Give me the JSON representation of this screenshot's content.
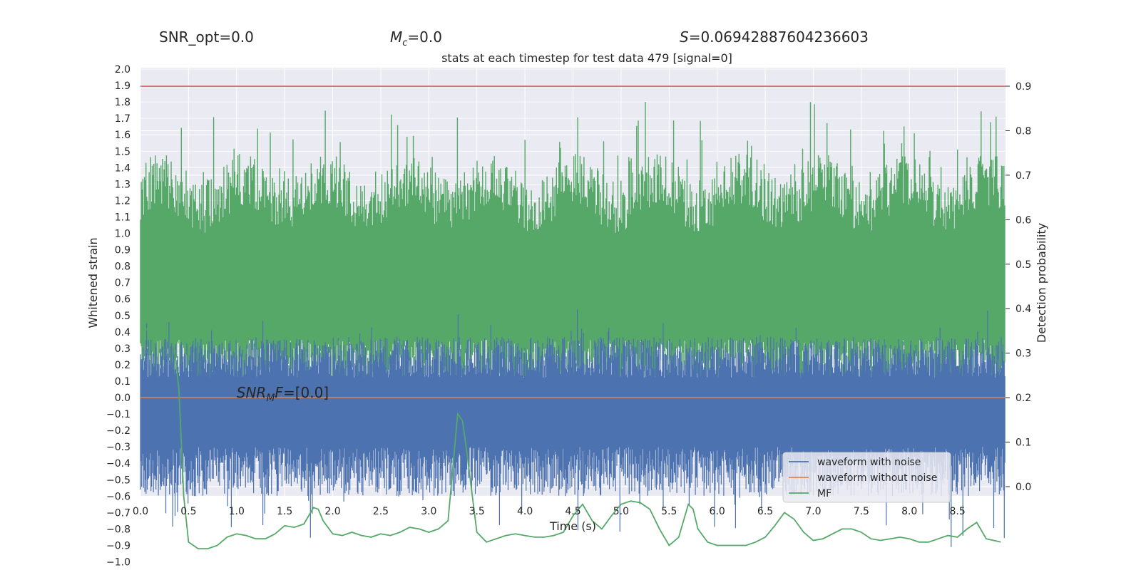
{
  "header": {
    "snr_opt": "SNR_opt=0.0",
    "mc_symbol": "M",
    "mc_sub": "c",
    "mc_value": "=0.0",
    "s_symbol": "S",
    "s_value": "=0.06942887604236603",
    "title": "stats at each timestep for test data 479 [signal=0]"
  },
  "annotation": {
    "snr_base": "SNR",
    "snr_sub": "M",
    "snr_tail": "F",
    "snr_value": "=[0.0]"
  },
  "chart_data": {
    "type": "line",
    "title": "stats at each timestep for test data 479 [signal=0]",
    "xlabel": "Time (s)",
    "ylabel_left": "Whitened strain",
    "ylabel_right": "Detection probability",
    "xlim": [
      0.0,
      9.0
    ],
    "ylim_left": [
      -1.1,
      2.0
    ],
    "ylim_right": [
      -0.02,
      0.92
    ],
    "x_ticks": [
      "0.0",
      "0.5",
      "1.0",
      "1.5",
      "2.0",
      "2.5",
      "3.0",
      "3.5",
      "4.0",
      "4.5",
      "5.0",
      "5.5",
      "6.0",
      "6.5",
      "7.0",
      "7.5",
      "8.0",
      "8.5"
    ],
    "y_left_ticks": [
      "2.0",
      "1.9",
      "1.8",
      "1.7",
      "1.6",
      "1.5",
      "1.4",
      "1.3",
      "1.2",
      "1.1",
      "1.0",
      "0.9",
      "0.8",
      "0.7",
      "0.6",
      "0.5",
      "0.4",
      "0.3",
      "0.2",
      "0.1",
      "0.0",
      "−0.1",
      "−0.2",
      "−0.3",
      "−0.4",
      "−0.5",
      "−0.6",
      "−0.7",
      "−0.8",
      "−0.9",
      "−1.0"
    ],
    "y_right_ticks": [
      "0.9",
      "0.8",
      "0.7",
      "0.6",
      "0.5",
      "0.4",
      "0.3",
      "0.2",
      "0.1",
      "0.0"
    ],
    "threshold": 0.9,
    "legend_position": "lower right",
    "grid": true,
    "series": [
      {
        "name": "waveform with noise",
        "color": "#4c72b0",
        "axis": "left",
        "description_range": [
          -0.9,
          0.5
        ]
      },
      {
        "name": "waveform without noise",
        "color": "#dd8452",
        "axis": "left",
        "value": 0.0
      },
      {
        "name": "MF",
        "color": "#55a868",
        "axis": "left",
        "x": [
          0.0,
          0.1,
          0.2,
          0.3,
          0.35,
          0.4,
          0.45,
          0.5,
          0.6,
          0.7,
          0.8,
          0.9,
          1.0,
          1.1,
          1.2,
          1.3,
          1.4,
          1.5,
          1.6,
          1.7,
          1.8,
          1.85,
          1.9,
          2.0,
          2.1,
          2.2,
          2.3,
          2.4,
          2.5,
          2.6,
          2.7,
          2.8,
          2.9,
          3.0,
          3.1,
          3.2,
          3.3,
          3.35,
          3.4,
          3.5,
          3.6,
          3.7,
          3.8,
          3.9,
          4.0,
          4.1,
          4.2,
          4.3,
          4.4,
          4.5,
          4.6,
          4.7,
          4.8,
          4.9,
          5.0,
          5.1,
          5.2,
          5.3,
          5.4,
          5.5,
          5.6,
          5.7,
          5.75,
          5.8,
          5.9,
          6.0,
          6.1,
          6.2,
          6.3,
          6.4,
          6.5,
          6.6,
          6.7,
          6.8,
          6.9,
          7.0,
          7.1,
          7.2,
          7.3,
          7.4,
          7.5,
          7.6,
          7.7,
          7.8,
          7.9,
          8.0,
          8.1,
          8.2,
          8.3,
          8.4,
          8.5,
          8.6,
          8.7,
          8.8,
          8.95
        ],
        "y": [
          0.35,
          0.45,
          0.55,
          0.6,
          0.3,
          0.05,
          -0.6,
          -0.88,
          -0.92,
          -0.92,
          -0.9,
          -0.85,
          -0.83,
          -0.84,
          -0.86,
          -0.86,
          -0.83,
          -0.78,
          -0.79,
          -0.77,
          -0.67,
          -0.68,
          -0.75,
          -0.83,
          -0.84,
          -0.82,
          -0.84,
          -0.85,
          -0.83,
          -0.84,
          -0.82,
          -0.79,
          -0.8,
          -0.82,
          -0.8,
          -0.75,
          -0.1,
          -0.14,
          -0.35,
          -0.82,
          -0.88,
          -0.86,
          -0.84,
          -0.83,
          -0.84,
          -0.85,
          -0.85,
          -0.84,
          -0.82,
          -0.72,
          -0.65,
          -0.75,
          -0.8,
          -0.72,
          -0.65,
          -0.63,
          -0.64,
          -0.68,
          -0.8,
          -0.9,
          -0.85,
          -0.65,
          -0.68,
          -0.8,
          -0.88,
          -0.9,
          -0.9,
          -0.9,
          -0.9,
          -0.88,
          -0.85,
          -0.78,
          -0.7,
          -0.74,
          -0.82,
          -0.87,
          -0.86,
          -0.83,
          -0.8,
          -0.8,
          -0.82,
          -0.86,
          -0.87,
          -0.86,
          -0.85,
          -0.86,
          -0.88,
          -0.88,
          -0.86,
          -0.84,
          -0.85,
          -0.8,
          -0.76,
          -0.86,
          -0.88
        ]
      },
      {
        "name": "Detection probability",
        "color": "#55a868",
        "axis": "right",
        "description_range": [
          0.21,
          0.9
        ]
      }
    ]
  }
}
